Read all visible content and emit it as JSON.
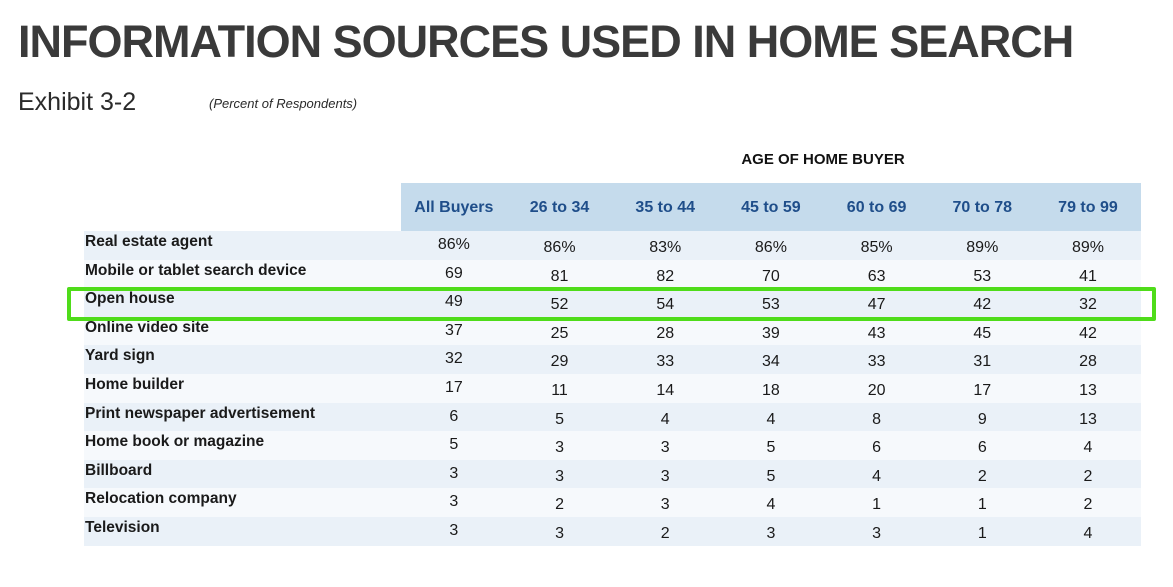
{
  "title": "INFORMATION SOURCES USED IN HOME SEARCH",
  "exhibit": "Exhibit 3-2",
  "subtitle": "(Percent of Respondents)",
  "colors": {
    "header_bg": "#c5dbec",
    "header_text": "#1f4e8a",
    "row_odd": "#eaf1f8",
    "row_even": "#f6f9fc",
    "highlight": "#4fdc1a"
  },
  "chart_data": {
    "type": "table",
    "group_header": "AGE OF HOME BUYER",
    "columns": [
      "All Buyers",
      "26 to 34",
      "35 to 44",
      "45 to 59",
      "60 to 69",
      "70 to 78",
      "79 to 99"
    ],
    "highlighted_row": "Open house",
    "rows": [
      {
        "label": "Real estate agent",
        "values": [
          "86%",
          "86%",
          "83%",
          "86%",
          "85%",
          "89%",
          "89%"
        ]
      },
      {
        "label": "Mobile or tablet search device",
        "values": [
          "69",
          "81",
          "82",
          "70",
          "63",
          "53",
          "41"
        ]
      },
      {
        "label": "Open house",
        "values": [
          "49",
          "52",
          "54",
          "53",
          "47",
          "42",
          "32"
        ]
      },
      {
        "label": "Online video site",
        "values": [
          "37",
          "25",
          "28",
          "39",
          "43",
          "45",
          "42"
        ]
      },
      {
        "label": "Yard sign",
        "values": [
          "32",
          "29",
          "33",
          "34",
          "33",
          "31",
          "28"
        ]
      },
      {
        "label": "Home builder",
        "values": [
          "17",
          "11",
          "14",
          "18",
          "20",
          "17",
          "13"
        ]
      },
      {
        "label": "Print newspaper advertisement",
        "values": [
          "6",
          "5",
          "4",
          "4",
          "8",
          "9",
          "13"
        ]
      },
      {
        "label": "Home book or magazine",
        "values": [
          "5",
          "3",
          "3",
          "5",
          "6",
          "6",
          "4"
        ]
      },
      {
        "label": "Billboard",
        "values": [
          "3",
          "3",
          "3",
          "5",
          "4",
          "2",
          "2"
        ]
      },
      {
        "label": "Relocation company",
        "values": [
          "3",
          "2",
          "3",
          "4",
          "1",
          "1",
          "2"
        ]
      },
      {
        "label": "Television",
        "values": [
          "3",
          "3",
          "2",
          "3",
          "3",
          "1",
          "4"
        ]
      }
    ]
  }
}
